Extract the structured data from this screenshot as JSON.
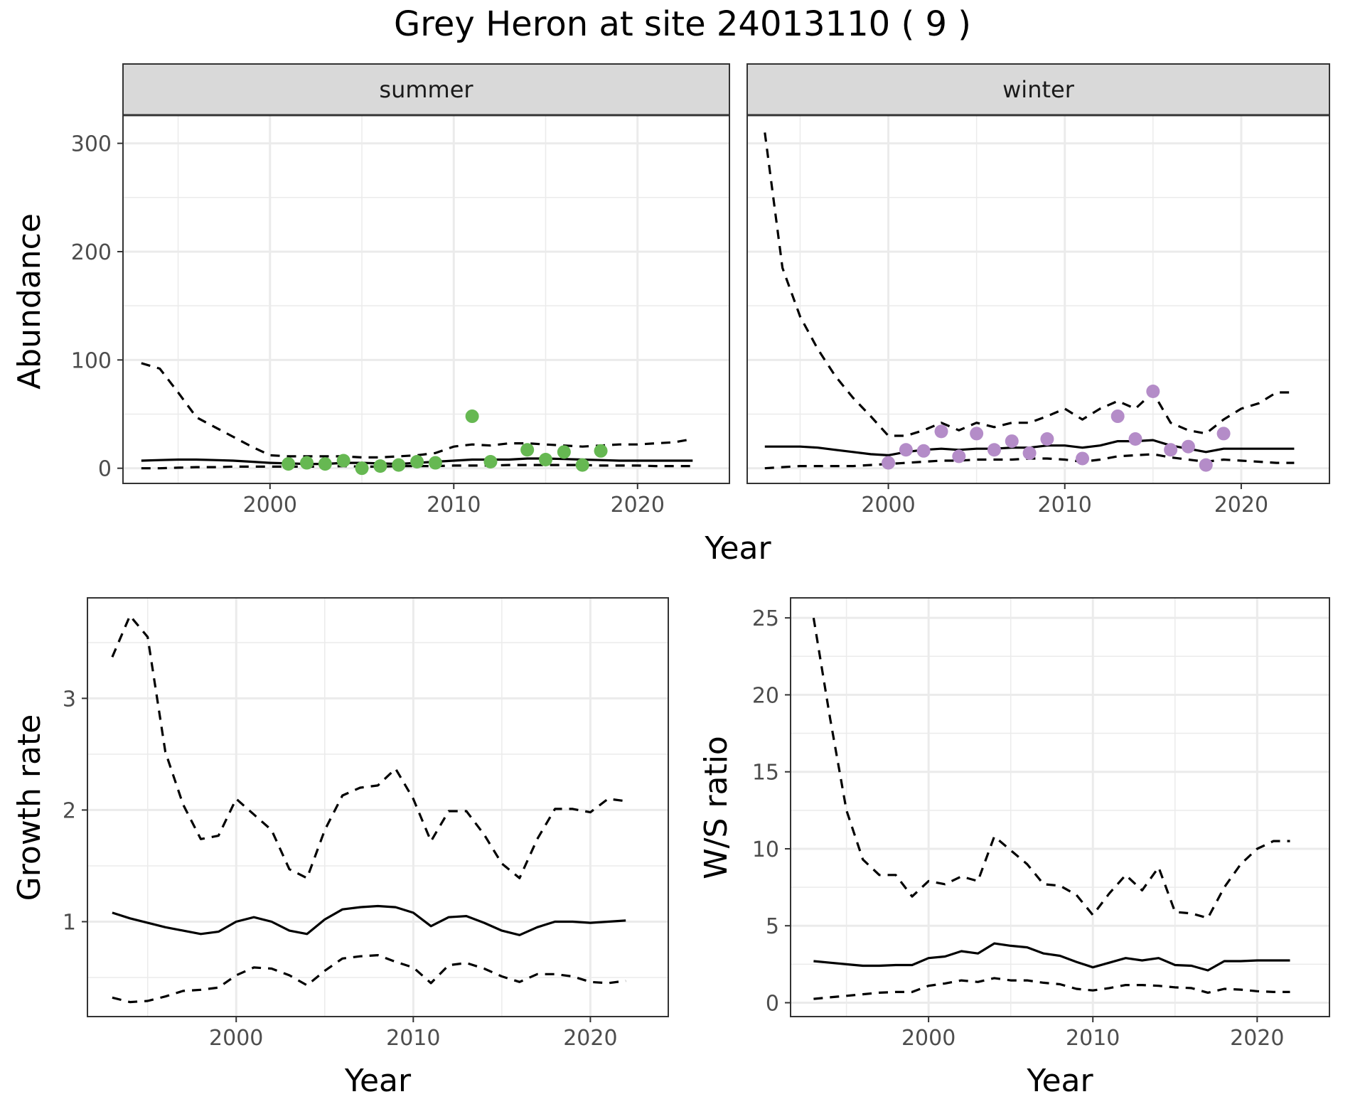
{
  "title": "Grey Heron at site 24013110 ( 9 )",
  "colors": {
    "summer_points": "#66b852",
    "winter_points": "#b48cc8",
    "line": "#000000",
    "grid": "#ebebeb",
    "strip_bg": "#d9d9d9"
  },
  "chart_data": [
    {
      "id": "summer",
      "type": "line+scatter",
      "strip": "summer",
      "xlabel": "Year",
      "ylabel": "Abundance",
      "xlim": [
        1992,
        2025
      ],
      "ylim": [
        -14,
        326
      ],
      "xticks": [
        2000,
        2010,
        2020
      ],
      "yticks": [
        0,
        100,
        200,
        300
      ],
      "grid": true,
      "series": [
        {
          "role": "estimate",
          "style": "solid",
          "x": [
            1993,
            1994,
            1995,
            1996,
            1997,
            1998,
            1999,
            2000,
            2001,
            2002,
            2003,
            2004,
            2005,
            2006,
            2007,
            2008,
            2009,
            2010,
            2011,
            2012,
            2013,
            2014,
            2015,
            2016,
            2017,
            2018,
            2019,
            2020,
            2021,
            2022,
            2023
          ],
          "y": [
            7,
            7.5,
            8,
            8,
            7.5,
            7,
            6,
            5,
            4.5,
            4,
            4,
            5,
            5,
            4.5,
            4,
            5,
            6,
            7,
            8,
            8,
            8,
            9,
            9,
            8.5,
            8,
            7.5,
            7,
            7,
            7,
            7,
            7
          ]
        },
        {
          "role": "upper",
          "style": "dashed",
          "x": [
            1993,
            1994,
            1995,
            1996,
            1997,
            1998,
            1999,
            2000,
            2001,
            2002,
            2003,
            2004,
            2005,
            2006,
            2007,
            2008,
            2009,
            2010,
            2011,
            2012,
            2013,
            2014,
            2015,
            2016,
            2017,
            2018,
            2019,
            2020,
            2021,
            2022,
            2023
          ],
          "y": [
            97,
            92,
            70,
            47,
            38,
            29,
            20,
            12,
            11,
            11,
            11,
            11,
            10,
            10,
            11,
            12,
            14,
            20,
            22,
            21,
            23,
            23,
            22,
            21,
            20,
            21,
            22,
            22,
            23,
            24,
            27
          ]
        },
        {
          "role": "lower",
          "style": "dashed",
          "x": [
            1993,
            1994,
            1995,
            1996,
            1997,
            1998,
            1999,
            2000,
            2001,
            2002,
            2003,
            2004,
            2005,
            2006,
            2007,
            2008,
            2009,
            2010,
            2011,
            2012,
            2013,
            2014,
            2015,
            2016,
            2017,
            2018,
            2019,
            2020,
            2021,
            2022,
            2023
          ],
          "y": [
            0,
            0,
            0.5,
            1,
            1,
            1.5,
            1.5,
            1.5,
            1.5,
            1.5,
            1.5,
            2,
            1.5,
            1.5,
            2,
            2,
            2,
            2.5,
            2.5,
            2.5,
            3,
            3,
            3,
            3,
            3,
            2.5,
            2.5,
            2.5,
            2,
            2,
            2
          ]
        },
        {
          "role": "observed",
          "style": "points",
          "x": [
            2001,
            2002,
            2003,
            2004,
            2005,
            2006,
            2007,
            2008,
            2009,
            2011,
            2012,
            2014,
            2015,
            2016,
            2017,
            2018
          ],
          "y": [
            4,
            5,
            4,
            7,
            0,
            2,
            3,
            6,
            5,
            48,
            6,
            17,
            8,
            15,
            3,
            16
          ]
        }
      ]
    },
    {
      "id": "winter",
      "type": "line+scatter",
      "strip": "winter",
      "xlim": [
        1992,
        2025
      ],
      "ylim": [
        -14,
        326
      ],
      "xticks": [
        2000,
        2010,
        2020
      ],
      "grid": true,
      "series": [
        {
          "role": "estimate",
          "style": "solid",
          "x": [
            1993,
            1994,
            1995,
            1996,
            1997,
            1998,
            1999,
            2000,
            2001,
            2002,
            2003,
            2004,
            2005,
            2006,
            2007,
            2008,
            2009,
            2010,
            2011,
            2012,
            2013,
            2014,
            2015,
            2016,
            2017,
            2018,
            2019,
            2020,
            2021,
            2022,
            2023
          ],
          "y": [
            20,
            20,
            20,
            19,
            17,
            15,
            13,
            12,
            15,
            17,
            18,
            17,
            18,
            18,
            19,
            19,
            21,
            21,
            19,
            21,
            25,
            25,
            26,
            21,
            18,
            15,
            18,
            18,
            18,
            18,
            18
          ]
        },
        {
          "role": "upper",
          "style": "dashed",
          "x": [
            1993,
            1994,
            1995,
            1996,
            1997,
            1998,
            1999,
            2000,
            2001,
            2002,
            2003,
            2004,
            2005,
            2006,
            2007,
            2008,
            2009,
            2010,
            2011,
            2012,
            2013,
            2014,
            2015,
            2016,
            2017,
            2018,
            2019,
            2020,
            2021,
            2022,
            2023
          ],
          "y": [
            310,
            185,
            140,
            110,
            85,
            65,
            48,
            30,
            30,
            35,
            42,
            35,
            42,
            38,
            42,
            42,
            48,
            55,
            45,
            55,
            62,
            55,
            70,
            42,
            35,
            32,
            45,
            55,
            60,
            70,
            70
          ]
        },
        {
          "role": "lower",
          "style": "dashed",
          "x": [
            1993,
            1994,
            1995,
            1996,
            1997,
            1998,
            1999,
            2000,
            2001,
            2002,
            2003,
            2004,
            2005,
            2006,
            2007,
            2008,
            2009,
            2010,
            2011,
            2012,
            2013,
            2014,
            2015,
            2016,
            2017,
            2018,
            2019,
            2020,
            2021,
            2022,
            2023
          ],
          "y": [
            0,
            1,
            2,
            2,
            2,
            2,
            3,
            4,
            5,
            6,
            7,
            7,
            8,
            8,
            8,
            9,
            9,
            8,
            6,
            8,
            11,
            12,
            13,
            10,
            8,
            6,
            8,
            7,
            6,
            5,
            5
          ]
        },
        {
          "role": "observed",
          "style": "points",
          "x": [
            2000,
            2001,
            2002,
            2003,
            2004,
            2005,
            2006,
            2007,
            2008,
            2009,
            2011,
            2013,
            2014,
            2015,
            2016,
            2017,
            2018,
            2019
          ],
          "y": [
            5,
            17,
            16,
            34,
            11,
            32,
            17,
            25,
            14,
            27,
            9,
            48,
            27,
            71,
            17,
            20,
            3,
            32
          ]
        }
      ]
    },
    {
      "id": "growth",
      "type": "line",
      "xlabel": "Year",
      "ylabel": "Growth rate",
      "xlim": [
        1991.6,
        2024.4
      ],
      "ylim": [
        0.15,
        3.9
      ],
      "xticks": [
        2000,
        2010,
        2020
      ],
      "yticks": [
        1,
        2,
        3
      ],
      "grid": true,
      "series": [
        {
          "role": "estimate",
          "style": "solid",
          "x": [
            1993,
            1994,
            1995,
            1996,
            1997,
            1998,
            1999,
            2000,
            2001,
            2002,
            2003,
            2004,
            2005,
            2006,
            2007,
            2008,
            2009,
            2010,
            2011,
            2012,
            2013,
            2014,
            2015,
            2016,
            2017,
            2018,
            2019,
            2020,
            2021,
            2022
          ],
          "y": [
            1.08,
            1.03,
            0.99,
            0.95,
            0.92,
            0.89,
            0.91,
            1.0,
            1.04,
            1.0,
            0.92,
            0.89,
            1.02,
            1.11,
            1.13,
            1.14,
            1.13,
            1.08,
            0.96,
            1.04,
            1.05,
            0.99,
            0.92,
            0.88,
            0.95,
            1.0,
            1.0,
            0.99,
            1.0,
            1.01
          ]
        },
        {
          "role": "upper",
          "style": "dashed",
          "x": [
            1993,
            1994,
            1995,
            1996,
            1997,
            1998,
            1999,
            2000,
            2001,
            2002,
            2003,
            2004,
            2005,
            2006,
            2007,
            2008,
            2009,
            2010,
            2011,
            2012,
            2013,
            2014,
            2015,
            2016,
            2017,
            2018,
            2019,
            2020,
            2021,
            2022
          ],
          "y": [
            3.37,
            3.74,
            3.55,
            2.52,
            2.05,
            1.74,
            1.77,
            2.1,
            1.96,
            1.82,
            1.47,
            1.39,
            1.82,
            2.13,
            2.2,
            2.22,
            2.37,
            2.1,
            1.72,
            1.99,
            1.99,
            1.78,
            1.52,
            1.39,
            1.74,
            2.01,
            2.01,
            1.98,
            2.1,
            2.08
          ]
        },
        {
          "role": "lower",
          "style": "dashed",
          "x": [
            1993,
            1994,
            1995,
            1996,
            1997,
            1998,
            1999,
            2000,
            2001,
            2002,
            2003,
            2004,
            2005,
            2006,
            2007,
            2008,
            2009,
            2010,
            2011,
            2012,
            2013,
            2014,
            2015,
            2016,
            2017,
            2018,
            2019,
            2020,
            2021,
            2022
          ],
          "y": [
            0.32,
            0.28,
            0.29,
            0.33,
            0.38,
            0.39,
            0.41,
            0.52,
            0.59,
            0.58,
            0.52,
            0.43,
            0.56,
            0.67,
            0.69,
            0.7,
            0.64,
            0.59,
            0.45,
            0.61,
            0.63,
            0.58,
            0.51,
            0.46,
            0.53,
            0.53,
            0.51,
            0.46,
            0.45,
            0.47
          ]
        }
      ]
    },
    {
      "id": "wsratio",
      "type": "line",
      "xlabel": "Year",
      "ylabel": "W/S ratio",
      "xlim": [
        1991.6,
        2024.4
      ],
      "ylim": [
        -0.9,
        26.3
      ],
      "xticks": [
        2000,
        2010,
        2020
      ],
      "yticks": [
        0,
        5,
        10,
        15,
        20,
        25
      ],
      "grid": true,
      "series": [
        {
          "role": "estimate",
          "style": "solid",
          "x": [
            1993,
            1994,
            1995,
            1996,
            1997,
            1998,
            1999,
            2000,
            2001,
            2002,
            2003,
            2004,
            2005,
            2006,
            2007,
            2008,
            2009,
            2010,
            2011,
            2012,
            2013,
            2014,
            2015,
            2016,
            2017,
            2018,
            2019,
            2020,
            2021,
            2022
          ],
          "y": [
            2.7,
            2.6,
            2.5,
            2.4,
            2.4,
            2.45,
            2.45,
            2.9,
            3.0,
            3.35,
            3.2,
            3.85,
            3.7,
            3.6,
            3.2,
            3.05,
            2.65,
            2.3,
            2.6,
            2.9,
            2.75,
            2.9,
            2.45,
            2.4,
            2.1,
            2.7,
            2.7,
            2.75,
            2.75,
            2.75
          ]
        },
        {
          "role": "upper",
          "style": "dashed",
          "x": [
            1993,
            1994,
            1995,
            1996,
            1997,
            1998,
            1999,
            2000,
            2001,
            2002,
            2003,
            2004,
            2005,
            2006,
            2007,
            2008,
            2009,
            2010,
            2011,
            2012,
            2013,
            2014,
            2015,
            2016,
            2017,
            2018,
            2019,
            2020,
            2021,
            2022
          ],
          "y": [
            25.0,
            18.5,
            12.5,
            9.3,
            8.3,
            8.3,
            6.9,
            7.9,
            7.7,
            8.2,
            7.9,
            10.8,
            9.9,
            9.0,
            7.7,
            7.6,
            7.0,
            5.7,
            7.1,
            8.3,
            7.3,
            8.8,
            5.9,
            5.8,
            5.5,
            7.5,
            9.0,
            10.0,
            10.5,
            10.5
          ]
        },
        {
          "role": "lower",
          "style": "dashed",
          "x": [
            1993,
            1994,
            1995,
            1996,
            1997,
            1998,
            1999,
            2000,
            2001,
            2002,
            2003,
            2004,
            2005,
            2006,
            2007,
            2008,
            2009,
            2010,
            2011,
            2012,
            2013,
            2014,
            2015,
            2016,
            2017,
            2018,
            2019,
            2020,
            2021,
            2022
          ],
          "y": [
            0.25,
            0.35,
            0.45,
            0.55,
            0.65,
            0.7,
            0.7,
            1.1,
            1.25,
            1.45,
            1.35,
            1.6,
            1.45,
            1.45,
            1.3,
            1.2,
            0.9,
            0.8,
            0.95,
            1.15,
            1.15,
            1.1,
            1.0,
            0.95,
            0.65,
            0.9,
            0.85,
            0.75,
            0.7,
            0.7
          ]
        }
      ]
    }
  ]
}
